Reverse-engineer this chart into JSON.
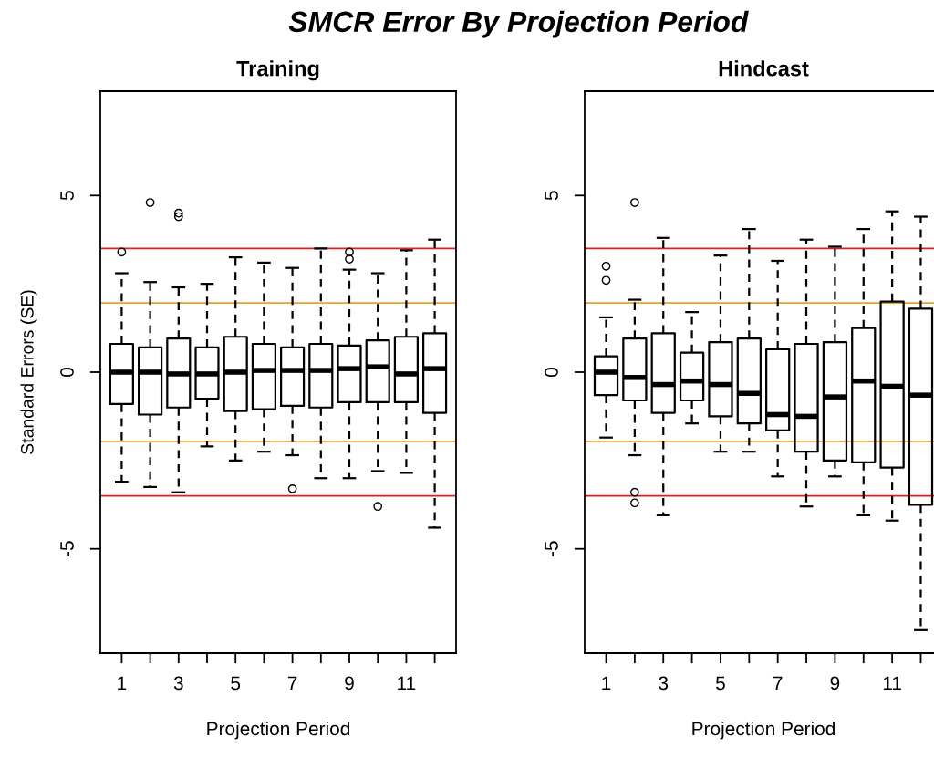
{
  "chart_data": [
    {
      "type": "box",
      "title": "Training",
      "xlabel": "Projection Period",
      "ylabel": "Standard Errors (SE)",
      "categories": [
        "1",
        null,
        "3",
        null,
        "5",
        null,
        "7",
        null,
        "9",
        null,
        "11",
        null
      ],
      "ylim": [
        -7.95,
        7.95
      ],
      "yticks": [
        {
          "value": -5,
          "label": "-5"
        },
        0,
        5
      ],
      "grid": false,
      "legend": false,
      "ref_lines": [
        {
          "axis": "y",
          "value": 3.5,
          "color": "#e02020"
        },
        {
          "axis": "y",
          "value": -3.5,
          "color": "#e02020"
        },
        {
          "axis": "y",
          "value": 1.96,
          "color": "#e8a030"
        },
        {
          "axis": "y",
          "value": -1.96,
          "color": "#e8a030"
        }
      ],
      "boxes": [
        {
          "low": -3.1,
          "q1": -0.9,
          "median": 0,
          "q3": 0.8,
          "high": 2.8,
          "outliers": [
            3.4
          ]
        },
        {
          "low": -3.25,
          "q1": -1.2,
          "median": 0,
          "q3": 0.7,
          "high": 2.55,
          "outliers": [
            4.8
          ]
        },
        {
          "low": -3.4,
          "q1": -1.0,
          "median": -0.05,
          "q3": 0.95,
          "high": 2.4,
          "outliers": [
            4.4,
            4.5
          ]
        },
        {
          "low": -2.1,
          "q1": -0.75,
          "median": -0.05,
          "q3": 0.7,
          "high": 2.5
        },
        {
          "low": -2.5,
          "q1": -1.1,
          "median": 0,
          "q3": 1.0,
          "high": 3.25
        },
        {
          "low": -2.25,
          "q1": -1.05,
          "median": 0.05,
          "q3": 0.8,
          "high": 3.1
        },
        {
          "low": -2.35,
          "q1": -0.95,
          "median": 0.05,
          "q3": 0.7,
          "high": 2.95,
          "outliers": [
            -3.3
          ]
        },
        {
          "low": -3.0,
          "q1": -1.0,
          "median": 0.05,
          "q3": 0.8,
          "high": 3.5
        },
        {
          "low": -3.0,
          "q1": -0.85,
          "median": 0.1,
          "q3": 0.75,
          "high": 2.9,
          "outliers": [
            3.2,
            3.4
          ]
        },
        {
          "low": -2.8,
          "q1": -0.85,
          "median": 0.15,
          "q3": 0.9,
          "high": 2.8,
          "outliers": [
            -3.8
          ]
        },
        {
          "low": -2.85,
          "q1": -0.85,
          "median": -0.05,
          "q3": 1.0,
          "high": 3.45
        },
        {
          "low": -4.4,
          "q1": -1.15,
          "median": 0.1,
          "q3": 1.1,
          "high": 3.75
        }
      ]
    },
    {
      "type": "box",
      "title": "Hindcast",
      "xlabel": "Projection Period",
      "categories": [
        "1",
        null,
        "3",
        null,
        "5",
        null,
        "7",
        null,
        "9",
        null,
        "11",
        null
      ],
      "ylim": [
        -7.95,
        7.95
      ],
      "yticks": [
        {
          "value": -5,
          "label": "-5"
        },
        0,
        5
      ],
      "grid": false,
      "legend": false,
      "ref_lines": [
        {
          "axis": "y",
          "value": 3.5,
          "color": "#e02020"
        },
        {
          "axis": "y",
          "value": -3.5,
          "color": "#e02020"
        },
        {
          "axis": "y",
          "value": 1.96,
          "color": "#e8a030"
        },
        {
          "axis": "y",
          "value": -1.96,
          "color": "#e8a030"
        }
      ],
      "boxes": [
        {
          "low": -1.85,
          "q1": -0.65,
          "median": 0,
          "q3": 0.45,
          "high": 1.55,
          "outliers": [
            2.6,
            3.0
          ]
        },
        {
          "low": -2.35,
          "q1": -0.8,
          "median": -0.15,
          "q3": 0.95,
          "high": 2.05,
          "outliers": [
            4.8,
            -3.4,
            -3.7
          ]
        },
        {
          "low": -4.05,
          "q1": -1.15,
          "median": -0.35,
          "q3": 1.1,
          "high": 3.8
        },
        {
          "low": -1.45,
          "q1": -0.8,
          "median": -0.25,
          "q3": 0.55,
          "high": 1.7
        },
        {
          "low": -2.25,
          "q1": -1.25,
          "median": -0.35,
          "q3": 0.85,
          "high": 3.3
        },
        {
          "low": -2.25,
          "q1": -1.45,
          "median": -0.6,
          "q3": 0.95,
          "high": 4.05
        },
        {
          "low": -2.95,
          "q1": -1.65,
          "median": -1.2,
          "q3": 0.65,
          "high": 3.15
        },
        {
          "low": -3.8,
          "q1": -2.25,
          "median": -1.25,
          "q3": 0.8,
          "high": 3.75
        },
        {
          "low": -2.95,
          "q1": -2.5,
          "median": -0.7,
          "q3": 0.85,
          "high": 3.55
        },
        {
          "low": -4.05,
          "q1": -2.55,
          "median": -0.25,
          "q3": 1.25,
          "high": 4.05
        },
        {
          "low": -4.2,
          "q1": -2.7,
          "median": -0.4,
          "q3": 2.0,
          "high": 4.55
        },
        {
          "low": -7.3,
          "q1": -3.75,
          "median": -0.65,
          "q3": 1.8,
          "high": 4.4
        }
      ]
    },
    {
      "type": "other",
      "title": "SMCR Error By Projection Period"
    }
  ]
}
